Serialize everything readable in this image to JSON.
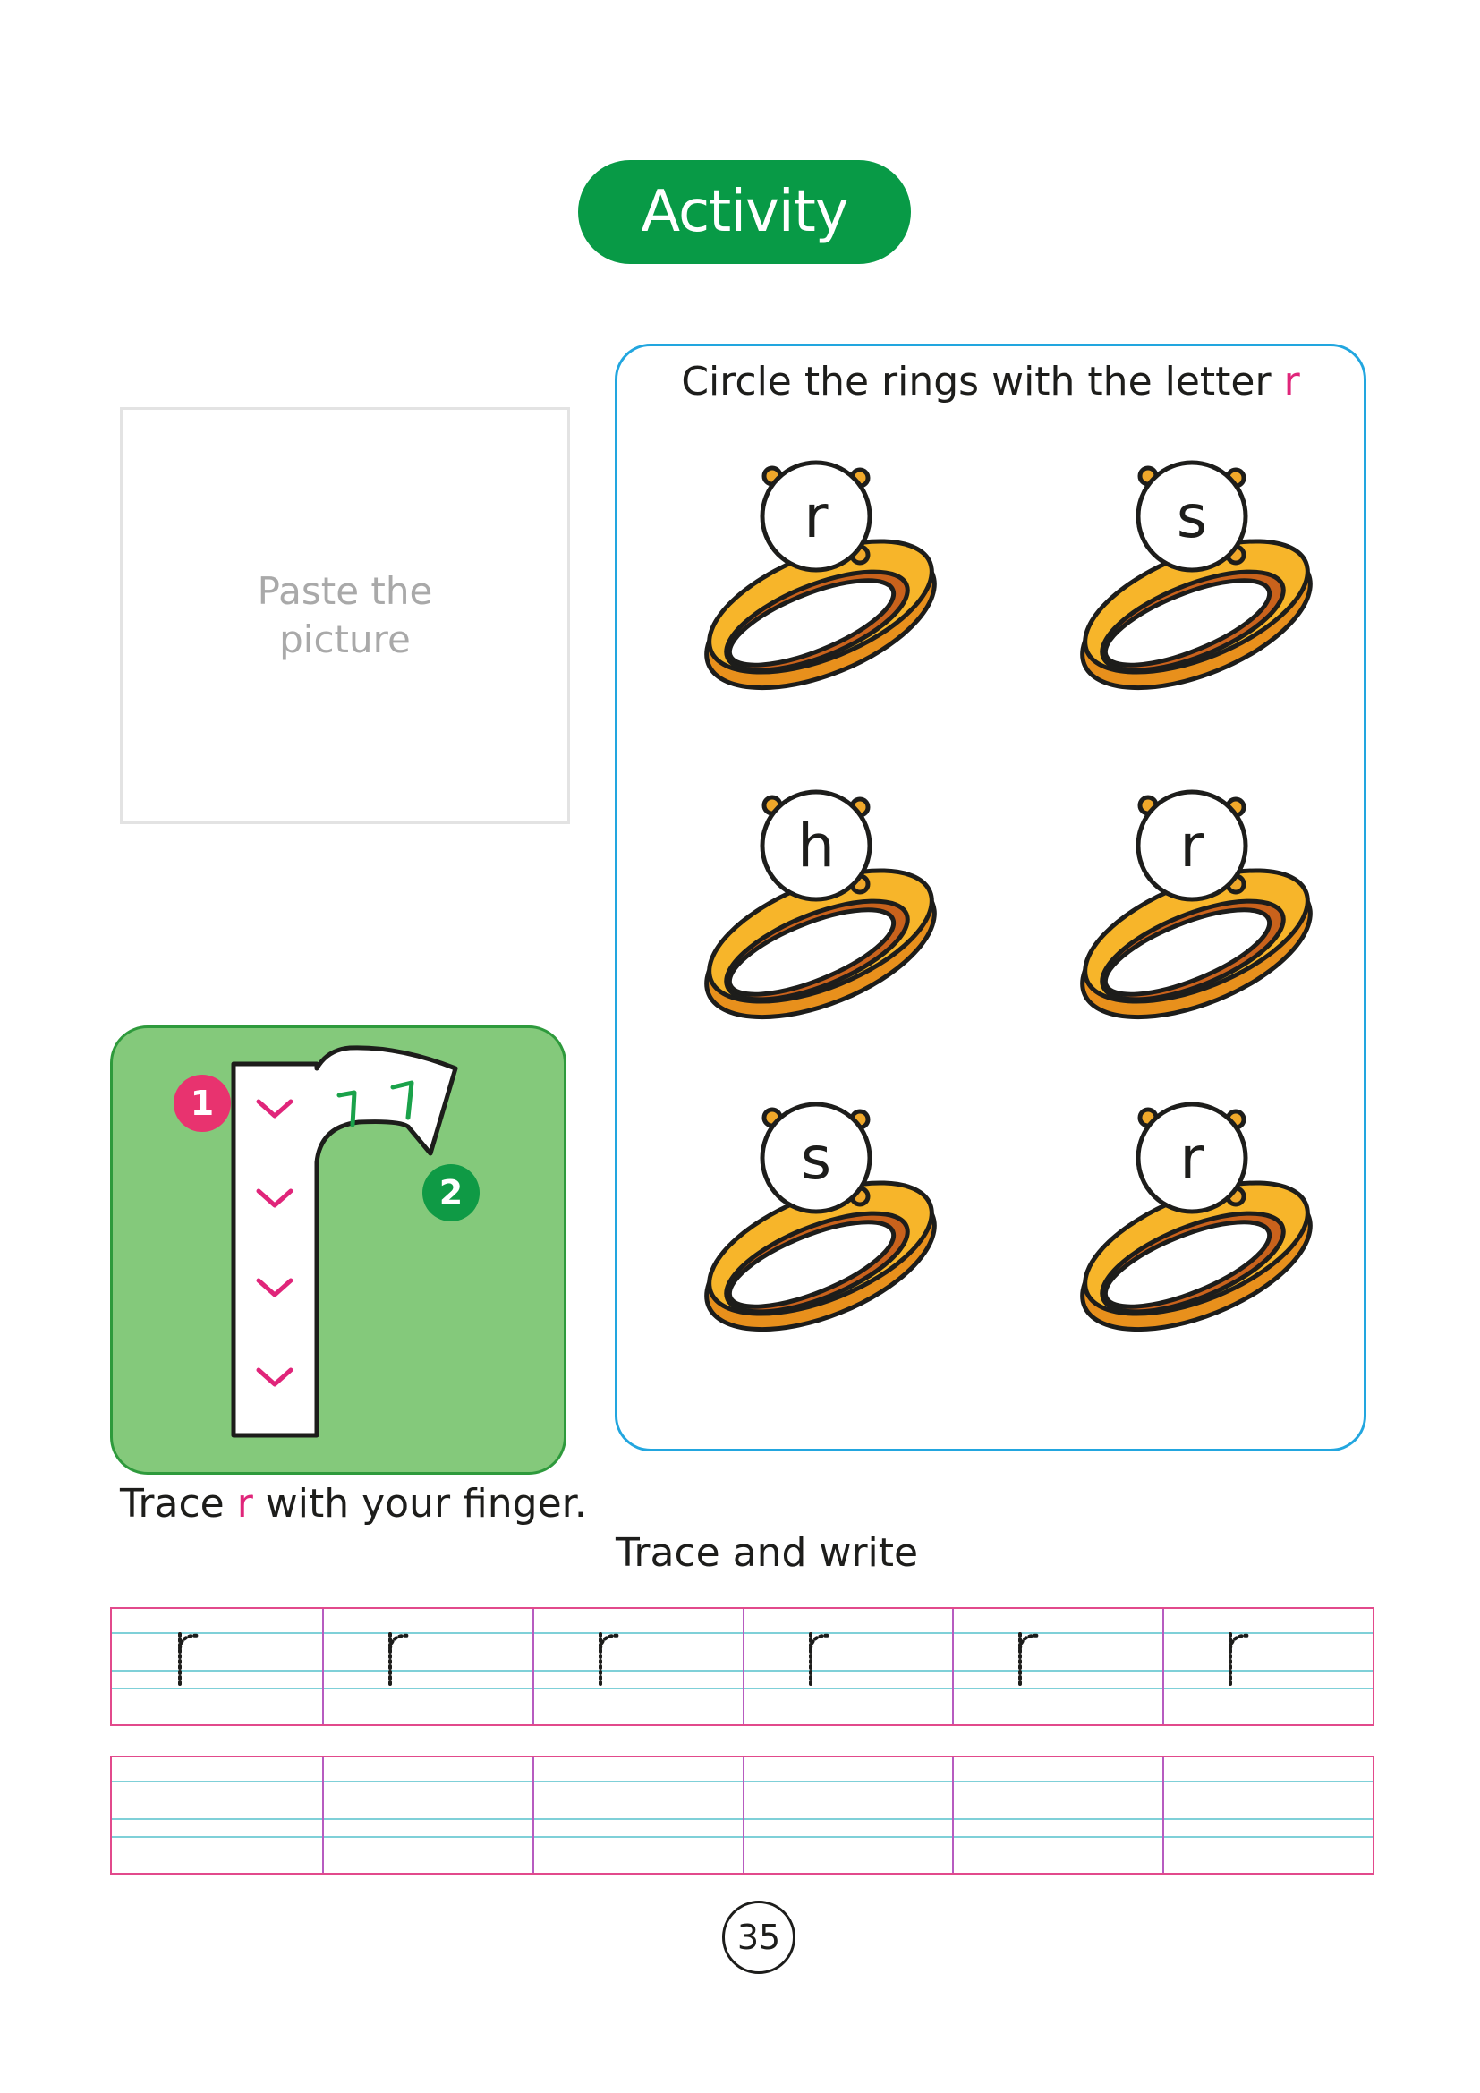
{
  "title": "Activity",
  "paste_box": {
    "text": "Paste the picture"
  },
  "ring_activity": {
    "instruction_prefix": "Circle the rings with the letter ",
    "instruction_letter": "r",
    "rings": [
      {
        "letter": "r"
      },
      {
        "letter": "s"
      },
      {
        "letter": "h"
      },
      {
        "letter": "r"
      },
      {
        "letter": "s"
      },
      {
        "letter": "r"
      }
    ]
  },
  "trace_tile": {
    "step_1": "1",
    "step_2": "2"
  },
  "trace_caption": {
    "before": "Trace ",
    "letter": "r",
    "after": " with your finger."
  },
  "trace_write": "Trace and write",
  "trace_row": [
    "r",
    "r",
    "r",
    "r",
    "r",
    "r"
  ],
  "page_number": "35",
  "colors": {
    "title_green": "#089a46",
    "panel_blue": "#22a6df",
    "accent_pink": "#e0257a",
    "tile_green": "#84c97b",
    "ring_gold": "#f6b21a"
  }
}
